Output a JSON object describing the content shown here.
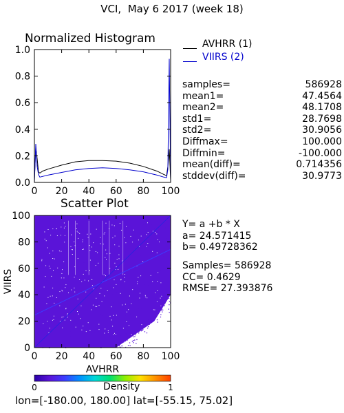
{
  "figure": {
    "title": "VCI,  May 6 2017 (week 18)",
    "footer": "lon=[-180.00, 180.00] lat=[-55.15, 75.02]"
  },
  "histogram": {
    "title": "Normalized Histogram",
    "legend": [
      {
        "label": "AVHRR (1)",
        "color": "#000000"
      },
      {
        "label": "VIIRS (2)",
        "color": "#0000cc"
      }
    ]
  },
  "stats": [
    {
      "label": "samples=",
      "value": "586928"
    },
    {
      "label": "mean1=",
      "value": "47.4564"
    },
    {
      "label": "mean2=",
      "value": "48.1708"
    },
    {
      "label": "std1=",
      "value": "28.7698"
    },
    {
      "label": "std2=",
      "value": "30.9056"
    },
    {
      "label": "Diffmax=",
      "value": "100.000"
    },
    {
      "label": "Diffmin=",
      "value": "-100.000"
    },
    {
      "label": "mean(diff)=",
      "value": "0.714356"
    },
    {
      "label": "stddev(diff)=",
      "value": "30.9773"
    }
  ],
  "scatter": {
    "title": "Scatter Plot",
    "fit_lines": [
      "Y= a +b * X",
      "a= 24.571415",
      "b= 0.49728362"
    ],
    "metric_lines": [
      "Samples= 586928",
      "CC=  0.4629",
      "RMSE= 27.393876"
    ]
  },
  "colorbar": {
    "label": "Density",
    "min_label": "0",
    "max_label": "1",
    "colors": [
      "#2b00a8",
      "#5a14d8",
      "#3c3cff",
      "#0090ff",
      "#00d8d8",
      "#00e070",
      "#90f000",
      "#ffe000",
      "#ff9000",
      "#ff4000"
    ]
  },
  "chart_data": [
    {
      "type": "line",
      "title": "Normalized Histogram",
      "xlim": [
        0,
        100
      ],
      "ylim": [
        0,
        1.0
      ],
      "x_ticks": [
        0,
        20,
        40,
        60,
        80,
        100
      ],
      "y_ticks": [
        0.0,
        0.2,
        0.4,
        0.6,
        0.8,
        1.0
      ],
      "y_tick_labels": [
        "0.0",
        "0.2",
        "0.4",
        "0.6",
        "0.8",
        "1.0"
      ],
      "series": [
        {
          "name": "AVHRR (1)",
          "color": "#000000",
          "x": [
            0,
            1,
            2,
            3,
            4,
            6,
            10,
            20,
            30,
            40,
            50,
            60,
            70,
            80,
            90,
            95,
            97,
            98,
            99,
            100
          ],
          "y": [
            0.02,
            0.26,
            0.18,
            0.08,
            0.07,
            0.085,
            0.1,
            0.13,
            0.155,
            0.165,
            0.165,
            0.16,
            0.145,
            0.12,
            0.085,
            0.06,
            0.05,
            0.12,
            0.25,
            0.02
          ]
        },
        {
          "name": "VIIRS (2)",
          "color": "#0000cc",
          "x": [
            0,
            1,
            2,
            3,
            4,
            6,
            10,
            20,
            30,
            40,
            50,
            60,
            70,
            80,
            90,
            95,
            97,
            98,
            99,
            100
          ],
          "y": [
            0.0,
            0.29,
            0.12,
            0.06,
            0.04,
            0.045,
            0.055,
            0.075,
            0.095,
            0.105,
            0.11,
            0.105,
            0.095,
            0.08,
            0.055,
            0.04,
            0.035,
            0.1,
            0.93,
            0.0
          ]
        }
      ]
    },
    {
      "type": "scatter",
      "title": "Scatter Plot",
      "xlabel": "AVHRR",
      "ylabel": "VIIRS",
      "xlim": [
        0,
        100
      ],
      "ylim": [
        0,
        100
      ],
      "x_ticks": [
        0,
        20,
        40,
        60,
        80,
        100
      ],
      "y_ticks": [
        0,
        20,
        40,
        60,
        80,
        100
      ],
      "fit": {
        "a": 24.571415,
        "b": 0.49728362
      },
      "n_samples": 586928,
      "cc": 0.4629,
      "rmse": 27.393876,
      "point_color": "#5a14d8",
      "line_color": "#3c3cff",
      "grid": false
    }
  ]
}
